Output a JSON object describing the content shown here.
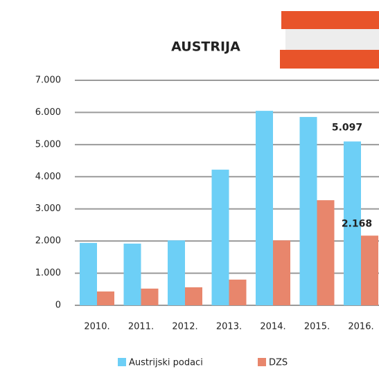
{
  "chart_data": {
    "type": "bar",
    "title": "AUSTRIJA",
    "categories": [
      "2010.",
      "2011.",
      "2012.",
      "2013.",
      "2014.",
      "2015.",
      "2016."
    ],
    "series": [
      {
        "name": "Austrijski podaci",
        "color": "#6dcff6",
        "values": [
          1940,
          1920,
          2020,
          4220,
          6050,
          5860,
          5097
        ],
        "value_labels": [
          null,
          null,
          null,
          null,
          null,
          null,
          "5.097"
        ]
      },
      {
        "name": "DZS",
        "color": "#e8866c",
        "values": [
          430,
          520,
          560,
          800,
          2020,
          3270,
          2168
        ],
        "value_labels": [
          null,
          null,
          null,
          null,
          null,
          null,
          "2.168"
        ]
      }
    ],
    "ylim": [
      0,
      7000
    ],
    "yticks": [
      0,
      {
        "value": 1000,
        "label": "1.000"
      },
      {
        "value": 2000,
        "label": "2.000"
      },
      {
        "value": 3000,
        "label": "3.000"
      },
      {
        "value": 4000,
        "label": "4.000"
      },
      {
        "value": 5000,
        "label": "5.000"
      },
      {
        "value": 6000,
        "label": "6.000"
      },
      {
        "value": 7000,
        "label": "7.000"
      }
    ],
    "grid": true
  }
}
